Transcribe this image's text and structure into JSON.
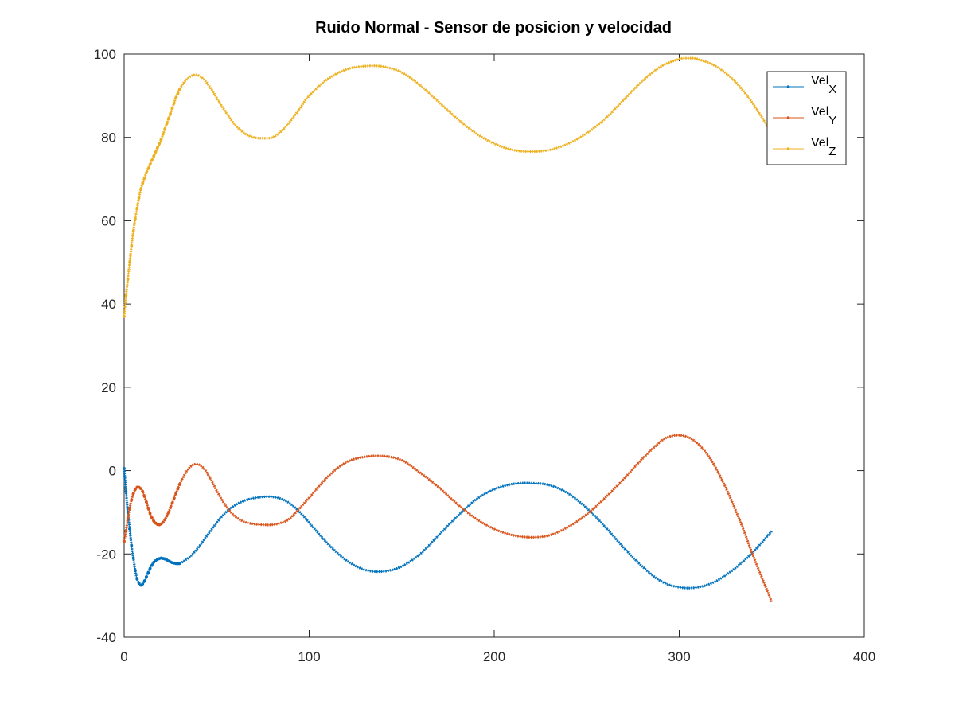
{
  "chart_data": {
    "type": "line",
    "title": "Ruido Normal - Sensor de posicion y velocidad",
    "xlabel": "",
    "ylabel": "",
    "xlim": [
      0,
      400
    ],
    "ylim": [
      -40,
      100
    ],
    "xticks": [
      "0",
      "100",
      "200",
      "300",
      "400"
    ],
    "yticks": [
      "-40",
      "-20",
      "0",
      "20",
      "40",
      "60",
      "80",
      "100"
    ],
    "grid": false,
    "legend_position": "top-right",
    "series": [
      {
        "name": "Vel X",
        "label_main": "Vel",
        "label_sub": "X",
        "color": "#0072BD",
        "x": [
          0,
          1,
          2,
          3,
          4,
          5,
          6,
          7,
          8,
          9,
          10,
          11,
          12,
          14,
          16,
          18,
          20,
          22,
          24,
          26,
          28,
          30,
          33,
          36,
          40,
          45,
          50,
          55,
          60,
          65,
          70,
          75,
          80,
          85,
          90,
          95,
          100,
          110,
          120,
          130,
          140,
          150,
          160,
          170,
          180,
          190,
          200,
          210,
          220,
          230,
          240,
          250,
          260,
          270,
          280,
          290,
          300,
          310,
          320,
          330,
          340,
          350
        ],
        "y": [
          0.5,
          -5,
          -10,
          -14,
          -18,
          -21,
          -24,
          -26,
          -27,
          -27.5,
          -27.2,
          -26.5,
          -25.5,
          -23.5,
          -22,
          -21.3,
          -21,
          -21.2,
          -21.7,
          -22.1,
          -22.3,
          -22.3,
          -21.5,
          -20.5,
          -18.5,
          -15.5,
          -12.5,
          -10,
          -8.3,
          -7.2,
          -6.6,
          -6.3,
          -6.3,
          -6.8,
          -8,
          -10,
          -12.5,
          -17.5,
          -21.5,
          -23.8,
          -24.2,
          -23,
          -20,
          -15.5,
          -11,
          -7,
          -4.5,
          -3.2,
          -3,
          -3.5,
          -5.5,
          -9,
          -13.5,
          -18.5,
          -23,
          -26.5,
          -28,
          -28,
          -26.5,
          -23.5,
          -19.5,
          -14.5
        ]
      },
      {
        "name": "Vel Y",
        "label_main": "Vel",
        "label_sub": "Y",
        "color": "#D95319",
        "x": [
          0,
          1,
          2,
          3,
          4,
          5,
          6,
          7,
          8,
          9,
          10,
          11,
          12,
          13,
          14,
          15,
          16,
          17,
          18,
          19,
          20,
          21,
          22,
          24,
          26,
          28,
          30,
          32,
          34,
          36,
          38,
          40,
          42,
          44,
          46,
          48,
          50,
          55,
          60,
          65,
          70,
          75,
          80,
          85,
          90,
          100,
          110,
          120,
          130,
          140,
          150,
          160,
          170,
          180,
          190,
          200,
          210,
          220,
          230,
          240,
          250,
          260,
          270,
          280,
          290,
          295,
          300,
          305,
          310,
          315,
          320,
          325,
          330,
          335,
          340,
          345,
          350
        ],
        "y": [
          -17,
          -14.5,
          -11.5,
          -9,
          -7,
          -5.5,
          -4.5,
          -4,
          -4,
          -4.3,
          -5,
          -6.2,
          -7.5,
          -9,
          -10.3,
          -11.3,
          -12.1,
          -12.6,
          -12.9,
          -13,
          -12.8,
          -12.4,
          -11.8,
          -10,
          -7.8,
          -5.5,
          -3.3,
          -1.5,
          0,
          1,
          1.5,
          1.5,
          1,
          0,
          -1.5,
          -3,
          -4.8,
          -8.5,
          -11,
          -12.3,
          -12.8,
          -13,
          -13,
          -12.5,
          -11.3,
          -6.5,
          -1.5,
          2,
          3.3,
          3.5,
          2.5,
          -0.5,
          -4,
          -8,
          -11.5,
          -14,
          -15.5,
          -16,
          -15.5,
          -13.5,
          -10.5,
          -6.5,
          -2,
          2.8,
          7,
          8.2,
          8.5,
          8,
          6.5,
          4,
          0.5,
          -4,
          -9,
          -14.5,
          -20.5,
          -26,
          -31.5
        ]
      },
      {
        "name": "Vel Z",
        "label_main": "Vel",
        "label_sub": "Z",
        "color": "#EDB120",
        "x": [
          0,
          1,
          2,
          3,
          4,
          5,
          6,
          7,
          8,
          9,
          10,
          12,
          14,
          16,
          18,
          20,
          22,
          24,
          26,
          28,
          30,
          32,
          34,
          36,
          38,
          40,
          42,
          44,
          46,
          48,
          50,
          55,
          60,
          65,
          70,
          75,
          80,
          85,
          90,
          95,
          100,
          110,
          120,
          130,
          140,
          150,
          160,
          170,
          180,
          190,
          200,
          210,
          220,
          230,
          240,
          250,
          260,
          270,
          280,
          290,
          300,
          305,
          310,
          320,
          330,
          340,
          350
        ],
        "y": [
          37,
          42,
          46,
          50,
          54,
          57.5,
          60.5,
          63,
          65.5,
          67.5,
          69,
          71.5,
          73.5,
          75.5,
          77.5,
          79.5,
          82,
          84.5,
          87,
          89.5,
          91.5,
          93,
          94,
          94.7,
          95,
          94.9,
          94.4,
          93.5,
          92.3,
          91,
          89.5,
          86,
          83,
          81,
          80,
          79.8,
          80,
          81.5,
          84,
          87,
          90,
          94,
          96.3,
          97.1,
          97,
          95.6,
          92.5,
          88.5,
          84.5,
          81,
          78.5,
          77,
          76.6,
          77,
          78.5,
          81,
          84.5,
          89,
          93.5,
          97,
          98.8,
          99,
          98.8,
          97,
          93.5,
          88,
          81
        ]
      }
    ]
  }
}
